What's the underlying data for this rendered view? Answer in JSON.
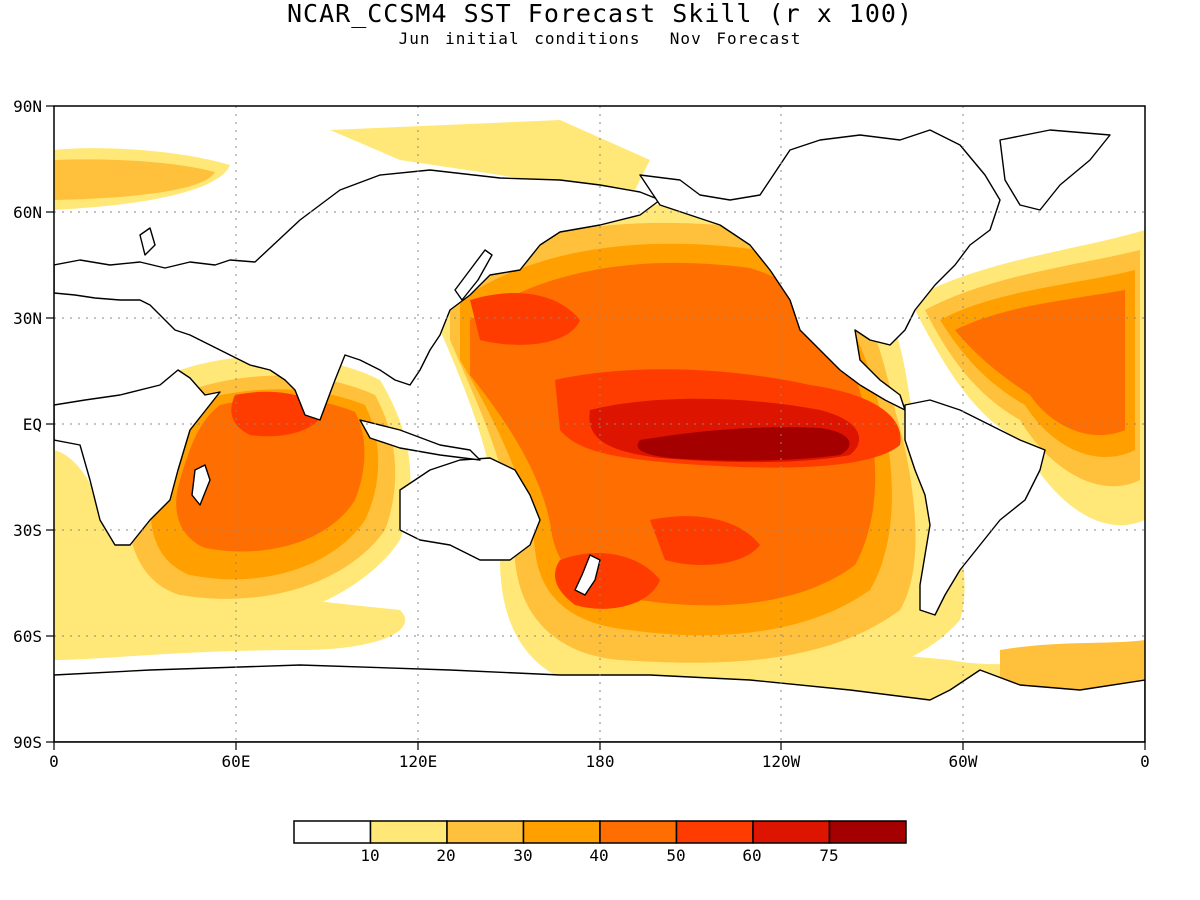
{
  "title": "NCAR_CCSM4 SST Forecast Skill (r x 100)",
  "subtitle": "Jun initial conditions  Nov Forecast",
  "map": {
    "projection": "cylindrical equidistant, 0-360 longitude",
    "lon_range": [
      0,
      360
    ],
    "lat_range": [
      -90,
      90
    ],
    "x_ticks": [
      "0",
      "60E",
      "120E",
      "180",
      "120W",
      "60W",
      "0"
    ],
    "y_ticks": [
      "90N",
      "60N",
      "30N",
      "EQ",
      "30S",
      "60S",
      "90S"
    ],
    "grid": "dotted",
    "land_fill": "#ffffff",
    "coastline_color": "#000000"
  },
  "legend": {
    "labels": [
      "10",
      "20",
      "30",
      "40",
      "50",
      "60",
      "75"
    ],
    "colors": [
      "#ffffff",
      "#ffe878",
      "#ffc13c",
      "#ffa000",
      "#ff6e00",
      "#ff3c00",
      "#dd1400",
      "#a50000"
    ]
  }
}
